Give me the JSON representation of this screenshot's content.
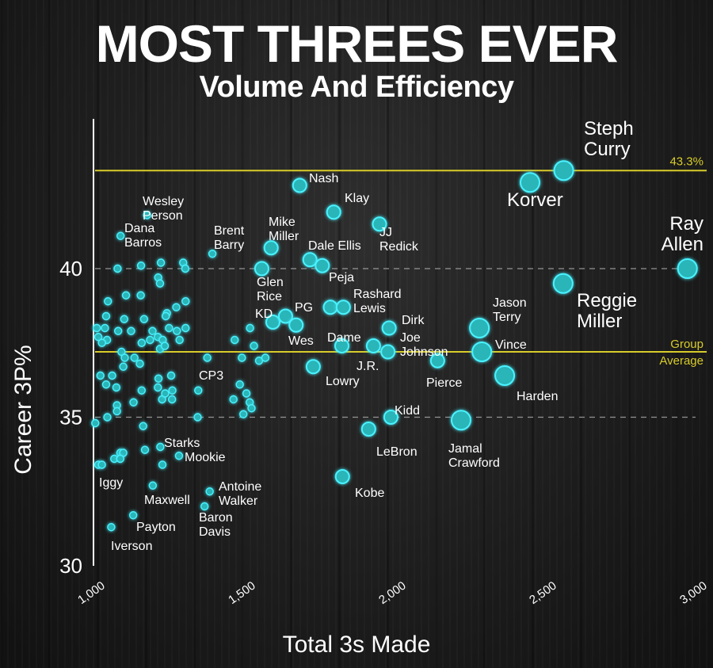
{
  "header": {
    "title": "MOST THREES EVER",
    "subtitle": "Volume And Efficiency"
  },
  "colors": {
    "background": "#1b1b1b",
    "point_fill": "#2bb5b8",
    "point_glow": "#48f2ff",
    "reference_line": "#d8cc2a",
    "text": "#ffffff"
  },
  "chart_data": {
    "type": "scatter",
    "xlabel": "Total 3s Made",
    "ylabel": "Career 3P%",
    "xlim": [
      1000,
      3000
    ],
    "ylim": [
      30,
      44
    ],
    "x_ticks": [
      "1,000",
      "1,500",
      "2,000",
      "2,500",
      "3,000"
    ],
    "y_ticks": [
      "30",
      "35",
      "40"
    ],
    "grid": "dashed lines at 35 and 40",
    "reference_lines": [
      {
        "y": 43.3,
        "label": "43.3%"
      },
      {
        "y": 37.2,
        "label": "Group Average"
      }
    ],
    "labeled_points": [
      {
        "name": "Steph Curry",
        "x": 2562,
        "y": 43.3,
        "size": "large"
      },
      {
        "name": "Korver",
        "x": 2450,
        "y": 42.9,
        "size": "large"
      },
      {
        "name": "Ray Allen",
        "x": 2973,
        "y": 40.0,
        "size": "large"
      },
      {
        "name": "Reggie Miller",
        "x": 2560,
        "y": 39.5,
        "size": "large"
      },
      {
        "name": "Nash",
        "x": 1685,
        "y": 42.8,
        "size": "medium"
      },
      {
        "name": "Klay",
        "x": 1798,
        "y": 41.9,
        "size": "medium"
      },
      {
        "name": "JJ Redick",
        "x": 1950,
        "y": 41.5,
        "size": "medium"
      },
      {
        "name": "Mike Miller",
        "x": 1590,
        "y": 40.7,
        "size": "medium"
      },
      {
        "name": "Dale Ellis",
        "x": 1719,
        "y": 40.3,
        "size": "medium"
      },
      {
        "name": "Brent Barry",
        "x": 1395,
        "y": 40.5,
        "size": "small"
      },
      {
        "name": "Glen Rice",
        "x": 1559,
        "y": 40.0,
        "size": "medium"
      },
      {
        "name": "Peja",
        "x": 1760,
        "y": 40.1,
        "size": "medium"
      },
      {
        "name": "Rashard Lewis",
        "x": 1787,
        "y": 38.7,
        "size": "medium"
      },
      {
        "name": "Rashard Lewis",
        "x": 1830,
        "y": 38.7,
        "size": "medium"
      },
      {
        "name": "KD",
        "x": 1596,
        "y": 38.2,
        "size": "medium"
      },
      {
        "name": "PG",
        "x": 1638,
        "y": 38.4,
        "size": "medium"
      },
      {
        "name": "Wes",
        "x": 1673,
        "y": 38.1,
        "size": "medium"
      },
      {
        "name": "Dirk",
        "x": 1982,
        "y": 38.0,
        "size": "medium"
      },
      {
        "name": "Jason Terry",
        "x": 2282,
        "y": 38.0,
        "size": "large"
      },
      {
        "name": "Dame",
        "x": 1825,
        "y": 37.4,
        "size": "medium"
      },
      {
        "name": "J.R.",
        "x": 1930,
        "y": 37.4,
        "size": "medium"
      },
      {
        "name": "Joe Johnson",
        "x": 1978,
        "y": 37.2,
        "size": "medium"
      },
      {
        "name": "Vince",
        "x": 2290,
        "y": 37.2,
        "size": "large"
      },
      {
        "name": "CP3",
        "x": 1378,
        "y": 37.0,
        "size": "small"
      },
      {
        "name": "Lowry",
        "x": 1730,
        "y": 36.7,
        "size": "medium"
      },
      {
        "name": "Pierce",
        "x": 2143,
        "y": 36.9,
        "size": "medium"
      },
      {
        "name": "Harden",
        "x": 2366,
        "y": 36.4,
        "size": "large"
      },
      {
        "name": "Kidd",
        "x": 1988,
        "y": 35.0,
        "size": "medium"
      },
      {
        "name": "LeBron",
        "x": 1914,
        "y": 34.6,
        "size": "medium"
      },
      {
        "name": "Jamal Crawford",
        "x": 2221,
        "y": 34.9,
        "size": "large"
      },
      {
        "name": "Kobe",
        "x": 1827,
        "y": 33.0,
        "size": "medium"
      },
      {
        "name": "Wesley Person",
        "x": 1178,
        "y": 41.8,
        "size": "small"
      },
      {
        "name": "Dana Barros",
        "x": 1090,
        "y": 41.1,
        "size": "small"
      },
      {
        "name": "Starks",
        "x": 1222,
        "y": 34.0,
        "size": "small"
      },
      {
        "name": "Mookie",
        "x": 1284,
        "y": 33.7,
        "size": "small"
      },
      {
        "name": "Iggy",
        "x": 1028,
        "y": 33.4,
        "size": "small"
      },
      {
        "name": "Maxwell",
        "x": 1197,
        "y": 32.7,
        "size": "small"
      },
      {
        "name": "Antoine Walker",
        "x": 1386,
        "y": 32.5,
        "size": "small"
      },
      {
        "name": "Baron Davis",
        "x": 1369,
        "y": 32.0,
        "size": "small"
      },
      {
        "name": "Payton",
        "x": 1132,
        "y": 31.7,
        "size": "small"
      },
      {
        "name": "Iverson",
        "x": 1059,
        "y": 31.3,
        "size": "small"
      }
    ],
    "unlabeled_points": [
      [
        1080,
        40.0
      ],
      [
        1158,
        40.1
      ],
      [
        1224,
        40.2
      ],
      [
        1298,
        40.2
      ],
      [
        1305,
        40.0
      ],
      [
        1215,
        39.7
      ],
      [
        1221,
        39.5
      ],
      [
        1048,
        38.9
      ],
      [
        1108,
        39.1
      ],
      [
        1157,
        39.1
      ],
      [
        1306,
        38.9
      ],
      [
        1275,
        38.7
      ],
      [
        1244,
        38.5
      ],
      [
        1240,
        38.4
      ],
      [
        1042,
        38.4
      ],
      [
        1102,
        38.3
      ],
      [
        1168,
        38.3
      ],
      [
        1011,
        38.0
      ],
      [
        1038,
        38.0
      ],
      [
        1082,
        37.9
      ],
      [
        1125,
        37.9
      ],
      [
        1196,
        37.9
      ],
      [
        1251,
        38.0
      ],
      [
        1277,
        37.9
      ],
      [
        1306,
        38.0
      ],
      [
        1016,
        37.7
      ],
      [
        1045,
        37.6
      ],
      [
        1188,
        37.6
      ],
      [
        1214,
        37.7
      ],
      [
        1230,
        37.6
      ],
      [
        1286,
        37.6
      ],
      [
        1028,
        37.5
      ],
      [
        1160,
        37.5
      ],
      [
        1221,
        37.3
      ],
      [
        1237,
        37.4
      ],
      [
        1093,
        37.2
      ],
      [
        1136,
        37.0
      ],
      [
        1104,
        37.0
      ],
      [
        1154,
        36.8
      ],
      [
        1099,
        36.7
      ],
      [
        1023,
        36.4
      ],
      [
        1062,
        36.4
      ],
      [
        1216,
        36.3
      ],
      [
        1258,
        36.4
      ],
      [
        1042,
        36.1
      ],
      [
        1076,
        36.0
      ],
      [
        1160,
        35.9
      ],
      [
        1214,
        36.0
      ],
      [
        1262,
        35.9
      ],
      [
        1348,
        35.9
      ],
      [
        1078,
        35.4
      ],
      [
        1133,
        35.5
      ],
      [
        1228,
        35.6
      ],
      [
        1238,
        35.8
      ],
      [
        1261,
        35.6
      ],
      [
        1346,
        35.0
      ],
      [
        1006,
        34.8
      ],
      [
        1046,
        35.0
      ],
      [
        1078,
        35.2
      ],
      [
        1016,
        33.4
      ],
      [
        1089,
        33.8
      ],
      [
        1099,
        33.8
      ],
      [
        1171,
        33.9
      ],
      [
        1229,
        33.4
      ],
      [
        1165,
        34.7
      ],
      [
        1069,
        33.6
      ],
      [
        1089,
        33.6
      ],
      [
        1469,
        37.6
      ],
      [
        1493,
        37.0
      ],
      [
        1533,
        37.4
      ],
      [
        1486,
        36.1
      ],
      [
        1550,
        36.9
      ],
      [
        1571,
        37.0
      ],
      [
        1508,
        35.8
      ],
      [
        1519,
        35.5
      ],
      [
        1498,
        35.1
      ],
      [
        1465,
        35.6
      ],
      [
        1525,
        35.3
      ],
      [
        1520,
        38.0
      ]
    ]
  }
}
